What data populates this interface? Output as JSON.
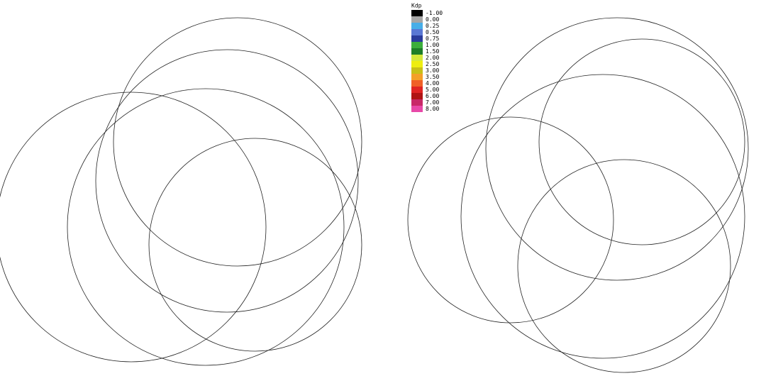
{
  "legend": {
    "title": "Kdp",
    "items": [
      {
        "label": "-1.00",
        "color": "#000000"
      },
      {
        "label": "0.00",
        "color": "#a6a6a6"
      },
      {
        "label": "0.25",
        "color": "#48aee8"
      },
      {
        "label": "0.50",
        "color": "#5a78d4"
      },
      {
        "label": "0.75",
        "color": "#2a3c9c"
      },
      {
        "label": "1.00",
        "color": "#3cae3c"
      },
      {
        "label": "1.50",
        "color": "#1e7e28"
      },
      {
        "label": "2.00",
        "color": "#d4e83c"
      },
      {
        "label": "2.50",
        "color": "#eeee10"
      },
      {
        "label": "3.00",
        "color": "#c8c018"
      },
      {
        "label": "3.50",
        "color": "#f4a028"
      },
      {
        "label": "4.00",
        "color": "#f06028"
      },
      {
        "label": "5.00",
        "color": "#e02424"
      },
      {
        "label": "6.00",
        "color": "#b01414"
      },
      {
        "label": "7.00",
        "color": "#c82868"
      },
      {
        "label": "8.00",
        "color": "#e848a8"
      }
    ]
  }
}
